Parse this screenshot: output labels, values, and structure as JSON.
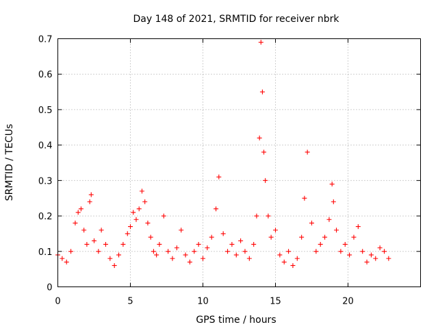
{
  "chart_data": {
    "type": "scatter",
    "title": "Day 148 of 2021, SRMTID for receiver nbrk",
    "xlabel": "GPS time / hours",
    "ylabel": "SRMTID / TECUs",
    "xlim": [
      0,
      25
    ],
    "ylim": [
      0,
      0.7
    ],
    "xticks": [
      "0",
      "5",
      "10",
      "15",
      "20"
    ],
    "yticks": [
      "0",
      "0.1",
      "0.2",
      "0.3",
      "0.4",
      "0.5",
      "0.6",
      "0.7"
    ],
    "grid": true,
    "marker": "plus",
    "color": "#ff0000",
    "series": [
      {
        "name": "nbrk",
        "x": [
          0.0,
          0.3,
          0.6,
          0.9,
          1.2,
          1.4,
          1.6,
          1.8,
          2.0,
          2.2,
          2.3,
          2.5,
          2.8,
          3.0,
          3.3,
          3.6,
          3.9,
          4.2,
          4.5,
          4.8,
          5.0,
          5.2,
          5.4,
          5.6,
          5.8,
          6.0,
          6.2,
          6.4,
          6.6,
          6.8,
          7.0,
          7.3,
          7.6,
          7.9,
          8.2,
          8.5,
          8.8,
          9.1,
          9.4,
          9.7,
          10.0,
          10.3,
          10.6,
          10.9,
          11.1,
          11.4,
          11.7,
          12.0,
          12.3,
          12.6,
          12.9,
          13.2,
          13.5,
          13.7,
          13.9,
          14.0,
          14.1,
          14.2,
          14.3,
          14.5,
          14.7,
          15.0,
          15.3,
          15.6,
          15.9,
          16.2,
          16.5,
          16.8,
          17.0,
          17.2,
          17.5,
          17.8,
          18.1,
          18.4,
          18.7,
          18.9,
          19.0,
          19.2,
          19.5,
          19.8,
          20.1,
          20.4,
          20.7,
          21.0,
          21.3,
          21.6,
          21.9,
          22.2,
          22.5,
          22.8
        ],
        "y": [
          0.09,
          0.08,
          0.07,
          0.1,
          0.18,
          0.21,
          0.22,
          0.16,
          0.12,
          0.24,
          0.26,
          0.13,
          0.1,
          0.16,
          0.12,
          0.08,
          0.06,
          0.09,
          0.12,
          0.15,
          0.17,
          0.21,
          0.19,
          0.22,
          0.27,
          0.24,
          0.18,
          0.14,
          0.1,
          0.09,
          0.12,
          0.2,
          0.1,
          0.08,
          0.11,
          0.16,
          0.09,
          0.07,
          0.1,
          0.12,
          0.08,
          0.11,
          0.14,
          0.22,
          0.31,
          0.15,
          0.1,
          0.12,
          0.09,
          0.13,
          0.1,
          0.08,
          0.12,
          0.2,
          0.42,
          0.69,
          0.55,
          0.38,
          0.3,
          0.2,
          0.14,
          0.16,
          0.09,
          0.07,
          0.1,
          0.06,
          0.08,
          0.14,
          0.25,
          0.38,
          0.18,
          0.1,
          0.12,
          0.14,
          0.19,
          0.29,
          0.24,
          0.16,
          0.1,
          0.12,
          0.09,
          0.14,
          0.17,
          0.1,
          0.07,
          0.09,
          0.08,
          0.11,
          0.1,
          0.08
        ]
      }
    ]
  }
}
